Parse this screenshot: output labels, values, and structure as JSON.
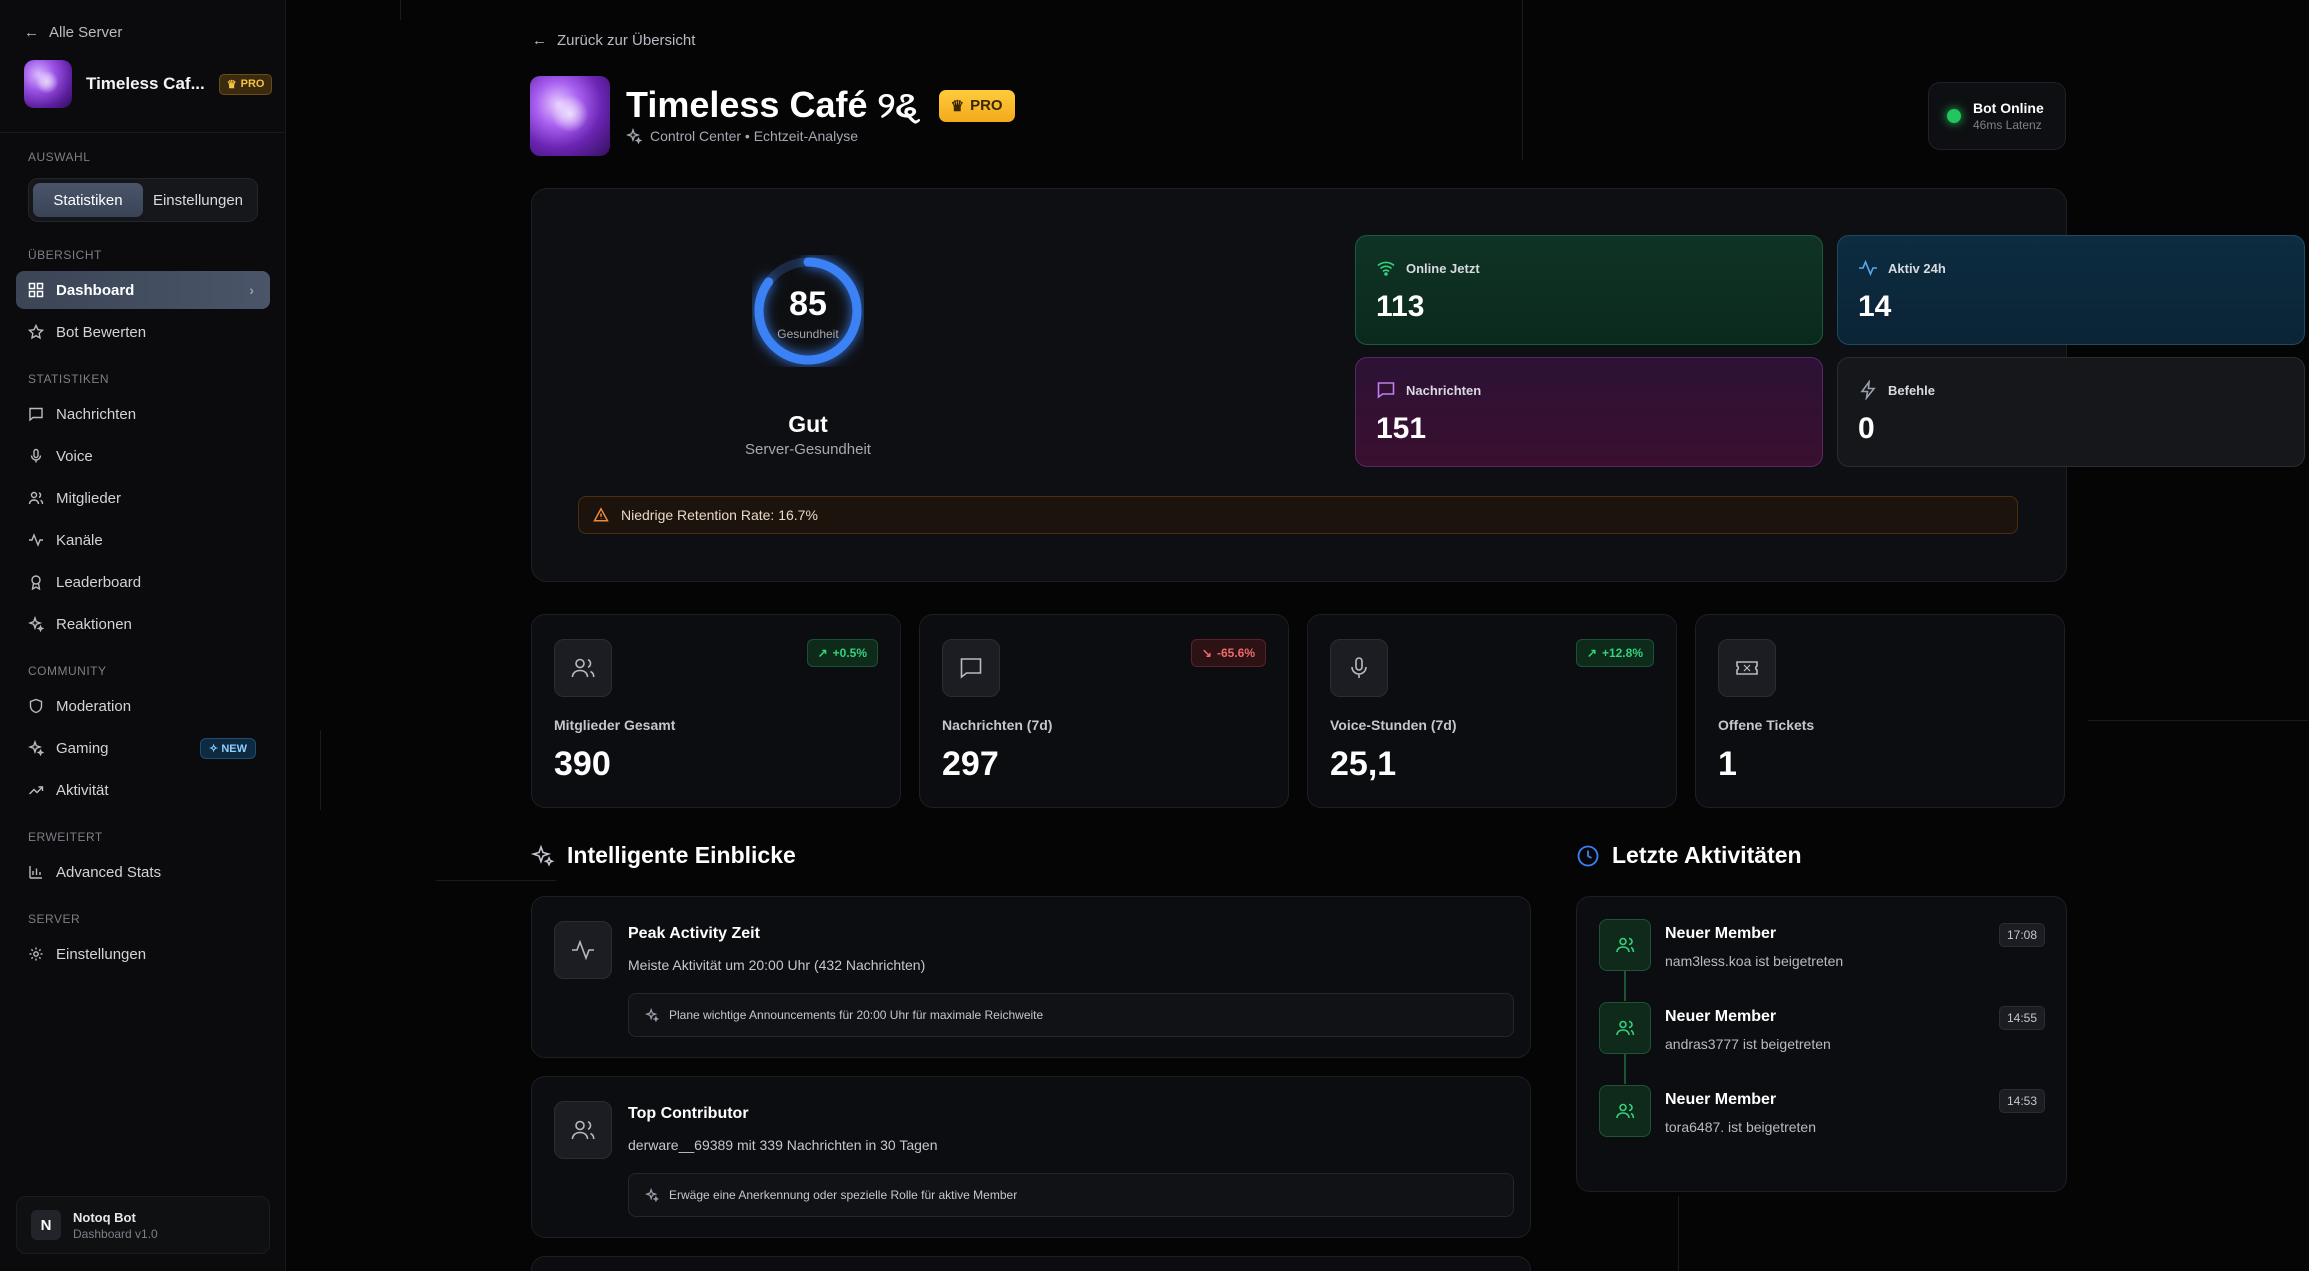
{
  "sidebar": {
    "back_label": "Alle Server",
    "server_name": "Timeless Caf...",
    "pro_label": "PRO",
    "section_auswahl": "AUSWAHL",
    "toggle": {
      "stats": "Statistiken",
      "settings": "Einstellungen"
    },
    "section_uebersicht": "ÜBERSICHT",
    "dashboard": "Dashboard",
    "bot_bewerten": "Bot Bewerten",
    "section_statistiken": "STATISTIKEN",
    "nachrichten": "Nachrichten",
    "voice": "Voice",
    "mitglieder": "Mitglieder",
    "kanaele": "Kanäle",
    "leaderboard": "Leaderboard",
    "reaktionen": "Reaktionen",
    "section_community": "COMMUNITY",
    "moderation": "Moderation",
    "gaming": "Gaming",
    "new_label": "NEW",
    "aktivitaet": "Aktivität",
    "section_erweitert": "ERWEITERT",
    "advanced_stats": "Advanced Stats",
    "section_server": "SERVER",
    "einstellungen": "Einstellungen",
    "footer": {
      "bot_name": "Notoq Bot",
      "version": "Dashboard v1.0",
      "logo": "N"
    }
  },
  "header": {
    "back_label": "Zurück zur Übersicht",
    "title": "Timeless Café ୨ୡ",
    "pro_label": "PRO",
    "subtitle": "Control Center • Echtzeit-Analyse",
    "bot_status": {
      "title": "Bot Online",
      "latency": "46ms Latenz"
    }
  },
  "health": {
    "score": "85",
    "score_fraction": 0.85,
    "score_label": "Gesundheit",
    "rating": "Gut",
    "rating_label": "Server-Gesundheit",
    "cards": {
      "online": {
        "label": "Online Jetzt",
        "value": "113"
      },
      "active": {
        "label": "Aktiv 24h",
        "value": "14"
      },
      "messages": {
        "label": "Nachrichten",
        "value": "151"
      },
      "commands": {
        "label": "Befehle",
        "value": "0"
      }
    },
    "warning": "Niedrige Retention Rate: 16.7%"
  },
  "stats": {
    "members": {
      "label": "Mitglieder Gesamt",
      "value": "390",
      "trend": "+0.5%"
    },
    "messages": {
      "label": "Nachrichten (7d)",
      "value": "297",
      "trend": "-65.6%"
    },
    "voice": {
      "label": "Voice-Stunden (7d)",
      "value": "25,1",
      "trend": "+12.8%"
    },
    "tickets": {
      "label": "Offene Tickets",
      "value": "1"
    }
  },
  "insights": {
    "title": "Intelligente Einblicke",
    "items": [
      {
        "title": "Peak Activity Zeit",
        "desc": "Meiste Aktivität um 20:00 Uhr (432 Nachrichten)",
        "tip": "Plane wichtige Announcements für 20:00 Uhr für maximale Reichweite"
      },
      {
        "title": "Top Contributor",
        "desc": "derware__69389 mit 339 Nachrichten in 30 Tagen",
        "tip": "Erwäge eine Anerkennung oder spezielle Rolle für aktive Member"
      }
    ]
  },
  "activity": {
    "title": "Letzte Aktivitäten",
    "items": [
      {
        "title": "Neuer Member",
        "desc": "nam3less.koa ist beigetreten",
        "time": "17:08"
      },
      {
        "title": "Neuer Member",
        "desc": "andras3777 ist beigetreten",
        "time": "14:55"
      },
      {
        "title": "Neuer Member",
        "desc": "tora6487. ist beigetreten",
        "time": "14:53"
      }
    ]
  },
  "colors": {
    "accent_blue": "#3b82f6",
    "online_green": "#22c55e",
    "pro_gold": "#f5c242"
  }
}
